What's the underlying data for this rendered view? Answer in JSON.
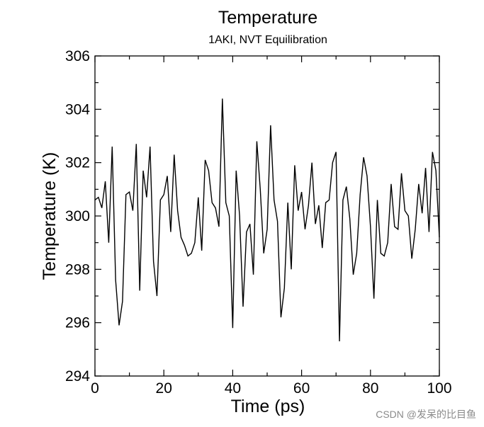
{
  "chart_data": {
    "type": "line",
    "title": "Temperature",
    "subtitle": "1AKI, NVT Equilibration",
    "xlabel": "Time (ps)",
    "ylabel": "Temperature (K)",
    "xlim": [
      0,
      100
    ],
    "ylim": [
      294,
      306
    ],
    "xticks": [
      0,
      20,
      40,
      60,
      80,
      100
    ],
    "yticks": [
      294,
      296,
      298,
      300,
      302,
      304,
      306
    ],
    "xtick_labels": [
      "0",
      "20",
      "40",
      "60",
      "80",
      "100"
    ],
    "ytick_labels": [
      "294",
      "296",
      "298",
      "300",
      "302",
      "304",
      "306"
    ],
    "grid": false,
    "series": [
      {
        "name": "Temperature",
        "color": "#000000",
        "x": [
          0,
          1,
          2,
          3,
          4,
          5,
          6,
          7,
          8,
          9,
          10,
          11,
          12,
          13,
          14,
          15,
          16,
          17,
          18,
          19,
          20,
          21,
          22,
          23,
          24,
          25,
          26,
          27,
          28,
          29,
          30,
          31,
          32,
          33,
          34,
          35,
          36,
          37,
          38,
          39,
          40,
          41,
          42,
          43,
          44,
          45,
          46,
          47,
          48,
          49,
          50,
          51,
          52,
          53,
          54,
          55,
          56,
          57,
          58,
          59,
          60,
          61,
          62,
          63,
          64,
          65,
          66,
          67,
          68,
          69,
          70,
          71,
          72,
          73,
          74,
          75,
          76,
          77,
          78,
          79,
          80,
          81,
          82,
          83,
          84,
          85,
          86,
          87,
          88,
          89,
          90,
          91,
          92,
          93,
          94,
          95,
          96,
          97,
          98,
          99,
          100
        ],
        "values": [
          300.6,
          300.7,
          300.3,
          301.3,
          299.0,
          302.6,
          297.6,
          295.9,
          296.8,
          300.8,
          300.9,
          300.2,
          302.7,
          297.2,
          301.7,
          300.7,
          302.6,
          298.3,
          297.0,
          300.6,
          300.8,
          301.5,
          299.4,
          302.3,
          300.2,
          299.2,
          298.9,
          298.5,
          298.6,
          299.0,
          300.7,
          298.7,
          302.1,
          301.7,
          300.5,
          300.3,
          299.6,
          304.4,
          300.5,
          300.0,
          295.8,
          301.7,
          300.0,
          296.6,
          299.4,
          299.7,
          297.8,
          302.8,
          301.0,
          298.6,
          299.5,
          303.4,
          300.6,
          299.8,
          296.2,
          297.3,
          300.5,
          298.0,
          301.9,
          300.2,
          300.9,
          299.5,
          300.4,
          302.0,
          299.7,
          300.4,
          298.8,
          300.5,
          300.6,
          302.0,
          302.4,
          295.3,
          300.6,
          301.1,
          299.9,
          297.8,
          298.6,
          300.8,
          302.2,
          301.5,
          299.6,
          296.9,
          300.6,
          298.6,
          298.5,
          299.0,
          301.2,
          299.6,
          299.5,
          301.6,
          300.2,
          300.0,
          298.4,
          299.5,
          301.2,
          300.1,
          301.8,
          299.4,
          302.4,
          301.7,
          299.2
        ]
      }
    ]
  },
  "watermark": "CSDN @发呆的比目鱼"
}
